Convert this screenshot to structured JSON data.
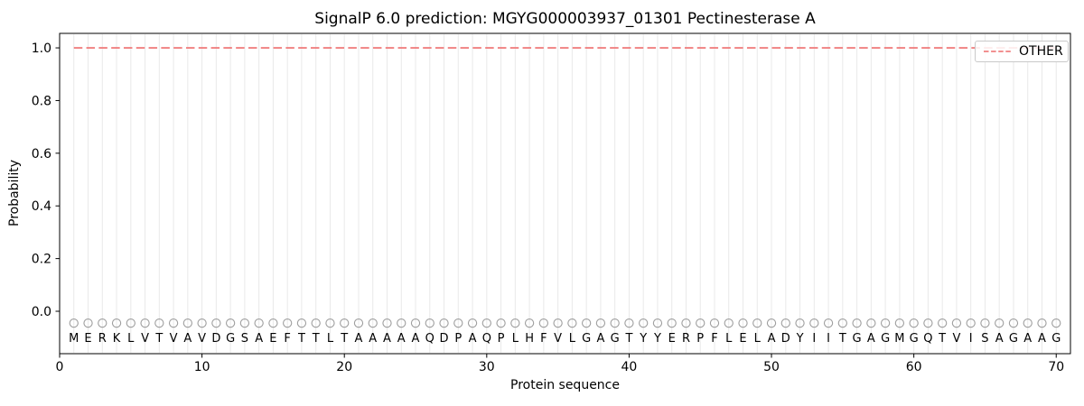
{
  "figure": {
    "kind": "SignalP 6.0 prediction plot"
  },
  "chart_data": {
    "type": "line",
    "title": "SignalP 6.0 prediction: MGYG000003937_01301 Pectinesterase A",
    "xlabel": "Protein sequence",
    "ylabel": "Probability",
    "xlim": [
      0,
      71
    ],
    "ylim": [
      -0.161,
      1.055
    ],
    "xticks": [
      0,
      10,
      20,
      30,
      40,
      50,
      60,
      70
    ],
    "yticks": [
      "0.0",
      "0.2",
      "0.4",
      "0.6",
      "0.8",
      "1.0"
    ],
    "grid": {
      "vertical_per_residue": true,
      "horizontal": false,
      "color": "#e9e9e9"
    },
    "legend": {
      "position": "upper-right",
      "entries": [
        {
          "label": "OTHER",
          "color": "#f08080",
          "linestyle": "dashed"
        }
      ]
    },
    "series": [
      {
        "name": "OTHER",
        "y_constant": 1.0,
        "x_range": [
          1,
          70
        ],
        "color": "#f08080",
        "linestyle": "dashed"
      }
    ],
    "sequence": "MERKLVTVAVDGSAEFTTLTAAAAAQDPAQPLHFVLGAGTYYERPFLELADYIITGAGMGQTVISAGAAG",
    "sequence_length": 70,
    "marker_row": {
      "symbol": "circle-outline",
      "y": -0.045,
      "color": "#9e9e9e"
    },
    "letter_row": {
      "y": -0.1,
      "color": "#1f1f1f"
    },
    "axis_color": "#000000"
  }
}
